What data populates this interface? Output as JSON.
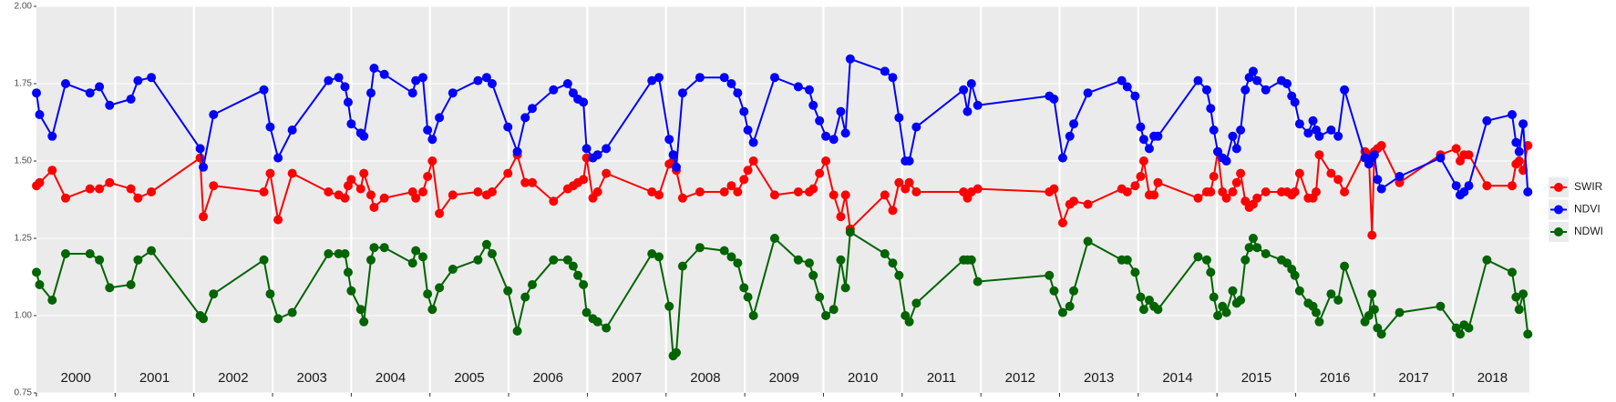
{
  "chart_data": {
    "type": "line",
    "x": [
      2000,
      2000.04,
      2000.2,
      2000.37,
      2000.68,
      2000.8,
      2000.93,
      2001.2,
      2001.29,
      2001.46,
      2002.08,
      2002.12,
      2002.25,
      2002.89,
      2002.97,
      2003.07,
      2003.25,
      2003.71,
      2003.84,
      2003.92,
      2003.96,
      2004,
      2004.12,
      2004.16,
      2004.25,
      2004.29,
      2004.42,
      2004.78,
      2004.82,
      2004.91,
      2004.97,
      2005.03,
      2005.12,
      2005.29,
      2005.61,
      2005.72,
      2005.79,
      2005.99,
      2006.11,
      2006.21,
      2006.3,
      2006.57,
      2006.75,
      2006.82,
      2006.88,
      2006.95,
      2006.99,
      2007.07,
      2007.13,
      2007.24,
      2007.82,
      2007.91,
      2008.04,
      2008.09,
      2008.13,
      2008.21,
      2008.43,
      2008.74,
      2008.83,
      2008.91,
      2008.99,
      2009.04,
      2009.11,
      2009.38,
      2009.68,
      2009.82,
      2009.87,
      2009.95,
      2010.03,
      2010.13,
      2010.22,
      2010.28,
      2010.34,
      2010.78,
      2010.88,
      2010.96,
      2011.04,
      2011.09,
      2011.18,
      2011.78,
      2011.83,
      2011.88,
      2011.96,
      2012.87,
      2012.93,
      2013.04,
      2013.13,
      2013.18,
      2013.36,
      2013.79,
      2013.86,
      2013.96,
      2014.03,
      2014.07,
      2014.14,
      2014.2,
      2014.25,
      2014.76,
      2014.87,
      2014.92,
      2014.96,
      2015.01,
      2015.07,
      2015.12,
      2015.2,
      2015.25,
      2015.3,
      2015.36,
      2015.41,
      2015.46,
      2015.51,
      2015.62,
      2015.82,
      2015.89,
      2015.95,
      2015.99,
      2016.05,
      2016.16,
      2016.22,
      2016.26,
      2016.3,
      2016.45,
      2016.54,
      2016.62,
      2016.88,
      2016.93,
      2016.97,
      2017,
      2017.04,
      2017.09,
      2017.32,
      2017.84,
      2018.04,
      2018.09,
      2018.14,
      2018.2,
      2018.43,
      2018.75,
      2018.8,
      2018.84,
      2018.89,
      2018.95
    ],
    "series": [
      {
        "name": "SWIR",
        "color": "#ff0000",
        "values": [
          1.42,
          1.43,
          1.47,
          1.38,
          1.41,
          1.41,
          1.43,
          1.41,
          1.38,
          1.4,
          1.51,
          1.32,
          1.42,
          1.4,
          1.46,
          1.31,
          1.46,
          1.4,
          1.39,
          1.38,
          1.42,
          1.44,
          1.41,
          1.46,
          1.39,
          1.35,
          1.38,
          1.4,
          1.38,
          1.4,
          1.45,
          1.5,
          1.33,
          1.39,
          1.4,
          1.39,
          1.4,
          1.46,
          1.52,
          1.43,
          1.43,
          1.37,
          1.41,
          1.42,
          1.43,
          1.44,
          1.51,
          1.38,
          1.4,
          1.46,
          1.4,
          1.39,
          1.49,
          1.5,
          1.47,
          1.38,
          1.4,
          1.4,
          1.42,
          1.4,
          1.44,
          1.47,
          1.5,
          1.39,
          1.4,
          1.4,
          1.41,
          1.46,
          1.5,
          1.39,
          1.32,
          1.39,
          1.28,
          1.39,
          1.34,
          1.43,
          1.41,
          1.43,
          1.4,
          1.4,
          1.38,
          1.4,
          1.41,
          1.4,
          1.41,
          1.3,
          1.36,
          1.37,
          1.36,
          1.41,
          1.4,
          1.42,
          1.45,
          1.5,
          1.39,
          1.39,
          1.43,
          1.38,
          1.4,
          1.4,
          1.45,
          1.53,
          1.4,
          1.38,
          1.4,
          1.43,
          1.46,
          1.37,
          1.35,
          1.36,
          1.38,
          1.4,
          1.4,
          1.4,
          1.39,
          1.4,
          1.46,
          1.38,
          1.38,
          1.4,
          1.52,
          1.46,
          1.44,
          1.4,
          1.53,
          1.52,
          1.26,
          1.53,
          1.54,
          1.55,
          1.43,
          1.52,
          1.54,
          1.5,
          1.52,
          1.52,
          1.42,
          1.42,
          1.49,
          1.5,
          1.47,
          1.55
        ]
      },
      {
        "name": "NDVI",
        "color": "#0000ff",
        "values": [
          1.72,
          1.65,
          1.58,
          1.75,
          1.72,
          1.74,
          1.68,
          1.7,
          1.76,
          1.77,
          1.54,
          1.48,
          1.65,
          1.73,
          1.61,
          1.51,
          1.6,
          1.76,
          1.77,
          1.74,
          1.69,
          1.62,
          1.59,
          1.58,
          1.72,
          1.8,
          1.78,
          1.72,
          1.76,
          1.77,
          1.6,
          1.57,
          1.64,
          1.72,
          1.76,
          1.77,
          1.75,
          1.61,
          1.53,
          1.64,
          1.67,
          1.73,
          1.75,
          1.72,
          1.7,
          1.69,
          1.54,
          1.51,
          1.52,
          1.54,
          1.76,
          1.77,
          1.57,
          1.52,
          1.48,
          1.72,
          1.77,
          1.77,
          1.75,
          1.72,
          1.66,
          1.6,
          1.56,
          1.77,
          1.74,
          1.73,
          1.68,
          1.63,
          1.58,
          1.57,
          1.66,
          1.59,
          1.83,
          1.79,
          1.77,
          1.64,
          1.5,
          1.5,
          1.61,
          1.73,
          1.66,
          1.75,
          1.68,
          1.71,
          1.7,
          1.51,
          1.58,
          1.62,
          1.72,
          1.76,
          1.74,
          1.71,
          1.61,
          1.57,
          1.54,
          1.58,
          1.58,
          1.76,
          1.73,
          1.67,
          1.6,
          1.53,
          1.51,
          1.5,
          1.58,
          1.54,
          1.6,
          1.73,
          1.77,
          1.79,
          1.76,
          1.73,
          1.76,
          1.75,
          1.71,
          1.69,
          1.62,
          1.59,
          1.63,
          1.6,
          1.58,
          1.6,
          1.58,
          1.73,
          1.51,
          1.49,
          1.51,
          1.52,
          1.44,
          1.41,
          1.45,
          1.51,
          1.42,
          1.39,
          1.4,
          1.42,
          1.63,
          1.65,
          1.56,
          1.53,
          1.62,
          1.4
        ]
      },
      {
        "name": "NDWI",
        "color": "#006400",
        "values": [
          1.14,
          1.1,
          1.05,
          1.2,
          1.2,
          1.18,
          1.09,
          1.1,
          1.18,
          1.21,
          1.0,
          0.99,
          1.07,
          1.18,
          1.07,
          0.99,
          1.01,
          1.2,
          1.2,
          1.2,
          1.14,
          1.08,
          1.02,
          0.98,
          1.18,
          1.22,
          1.22,
          1.17,
          1.21,
          1.19,
          1.07,
          1.02,
          1.09,
          1.15,
          1.18,
          1.23,
          1.2,
          1.08,
          0.95,
          1.06,
          1.1,
          1.18,
          1.18,
          1.16,
          1.13,
          1.1,
          1.01,
          0.99,
          0.98,
          0.96,
          1.2,
          1.19,
          1.03,
          0.87,
          0.88,
          1.16,
          1.22,
          1.21,
          1.19,
          1.17,
          1.09,
          1.06,
          1.0,
          1.25,
          1.18,
          1.17,
          1.13,
          1.06,
          1.0,
          1.02,
          1.18,
          1.09,
          1.27,
          1.2,
          1.17,
          1.13,
          1.0,
          0.98,
          1.04,
          1.18,
          1.18,
          1.18,
          1.11,
          1.13,
          1.08,
          1.01,
          1.03,
          1.08,
          1.24,
          1.18,
          1.18,
          1.14,
          1.06,
          1.02,
          1.05,
          1.03,
          1.02,
          1.19,
          1.18,
          1.14,
          1.06,
          1.0,
          1.03,
          1.01,
          1.08,
          1.04,
          1.05,
          1.18,
          1.22,
          1.25,
          1.22,
          1.2,
          1.18,
          1.17,
          1.15,
          1.13,
          1.08,
          1.04,
          1.03,
          1.01,
          0.98,
          1.07,
          1.05,
          1.16,
          0.98,
          1.0,
          1.07,
          1.02,
          0.96,
          0.94,
          1.01,
          1.03,
          0.96,
          0.94,
          0.97,
          0.96,
          1.18,
          1.14,
          1.06,
          1.02,
          1.07,
          0.94
        ]
      }
    ],
    "years": [
      2000,
      2001,
      2002,
      2003,
      2004,
      2005,
      2006,
      2007,
      2008,
      2009,
      2010,
      2011,
      2012,
      2013,
      2014,
      2015,
      2016,
      2017,
      2018
    ],
    "xlim": [
      2000,
      2018.97
    ],
    "ylim": [
      0.75,
      2
    ],
    "yticks": [
      0.75,
      {
        "value": 1,
        "label": "1.00"
      },
      1.25,
      {
        "value": 1.5,
        "label": "1.50"
      },
      1.75,
      {
        "value": 2,
        "label": "2.00"
      }
    ],
    "grid": true,
    "legend": "right"
  }
}
